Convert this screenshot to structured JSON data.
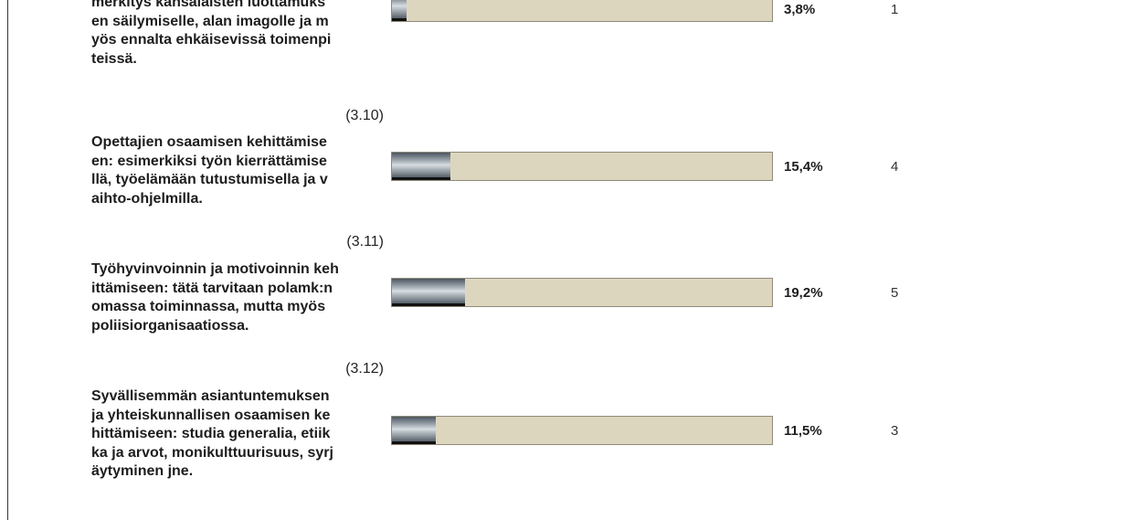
{
  "chart_data": {
    "type": "bar",
    "orientation": "horizontal",
    "xlim": [
      0,
      100
    ],
    "items": [
      {
        "number": "",
        "text": "merkitys kansalaisten luottamuks\nen säilymiselle, alan imagolle ja m\nyös ennalta ehkäisevissä toimenpi\nteissä.",
        "percent": 3.8,
        "percent_label": "3,8%",
        "count": "1"
      },
      {
        "number": "(3.10)",
        "text": "Opettajien osaamisen kehittämise\nen: esimerkiksi työn kierrättämise\nllä, työelämään tutustumisella ja v\naihto-ohjelmilla.",
        "percent": 15.4,
        "percent_label": "15,4%",
        "count": "4"
      },
      {
        "number": "(3.11)",
        "text": "Työhyvinvoinnin ja motivoinnin keh\nittämiseen: tätä tarvitaan polamk:n\nomassa toiminnassa, mutta myös\npoliisiorganisaatiossa.",
        "percent": 19.2,
        "percent_label": "19,2%",
        "count": "5"
      },
      {
        "number": "(3.12)",
        "text": "Syvällisemmän asiantuntemuksen\nja yhteiskunnallisen osaamisen ke\nhittämiseen: studia generalia, etiik\nka ja arvot, monikulttuurisuus, syrj\näytyminen jne.",
        "percent": 11.5,
        "percent_label": "11,5%",
        "count": "3"
      }
    ]
  },
  "colors": {
    "bar_track": "#ddd6bf",
    "bar_fill": "#7f8890",
    "text": "#1d1d1d"
  }
}
